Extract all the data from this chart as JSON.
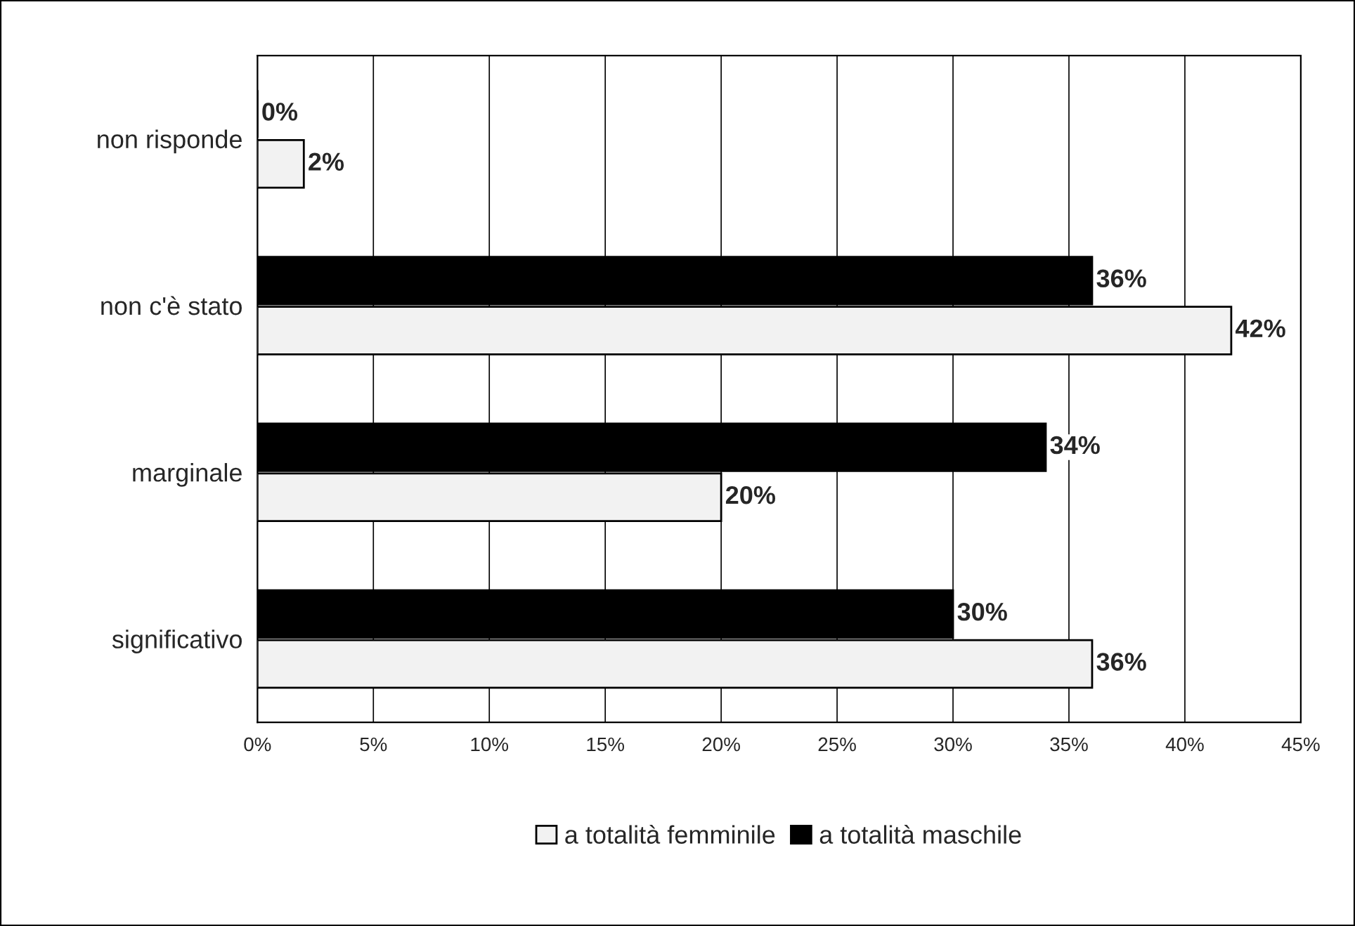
{
  "chart_data": {
    "type": "bar",
    "orientation": "horizontal",
    "categories": [
      "non risponde",
      "non c'è stato",
      "marginale",
      "significativo"
    ],
    "series": [
      {
        "name": "a totalità femminile",
        "color": "#f2f2f2",
        "values": [
          2,
          42,
          20,
          36
        ],
        "value_labels": [
          "2%",
          "42%",
          "20%",
          "36%"
        ]
      },
      {
        "name": "a totalità maschile",
        "color": "#000000",
        "values": [
          0,
          36,
          34,
          30
        ],
        "value_labels": [
          "0%",
          "36%",
          "34%",
          "30%"
        ]
      }
    ],
    "xlim": [
      0,
      45
    ],
    "xticks": [
      {
        "value": 0,
        "label": "0%"
      },
      {
        "value": 5,
        "label": "5%"
      },
      {
        "value": 10,
        "label": "10%"
      },
      {
        "value": 15,
        "label": "15%"
      },
      {
        "value": 20,
        "label": "20%"
      },
      {
        "value": 25,
        "label": "25%"
      },
      {
        "value": 30,
        "label": "30%"
      },
      {
        "value": 35,
        "label": "35%"
      },
      {
        "value": 40,
        "label": "40%"
      },
      {
        "value": 45,
        "label": "45%"
      }
    ],
    "grid": "x",
    "legend": "bottom"
  }
}
